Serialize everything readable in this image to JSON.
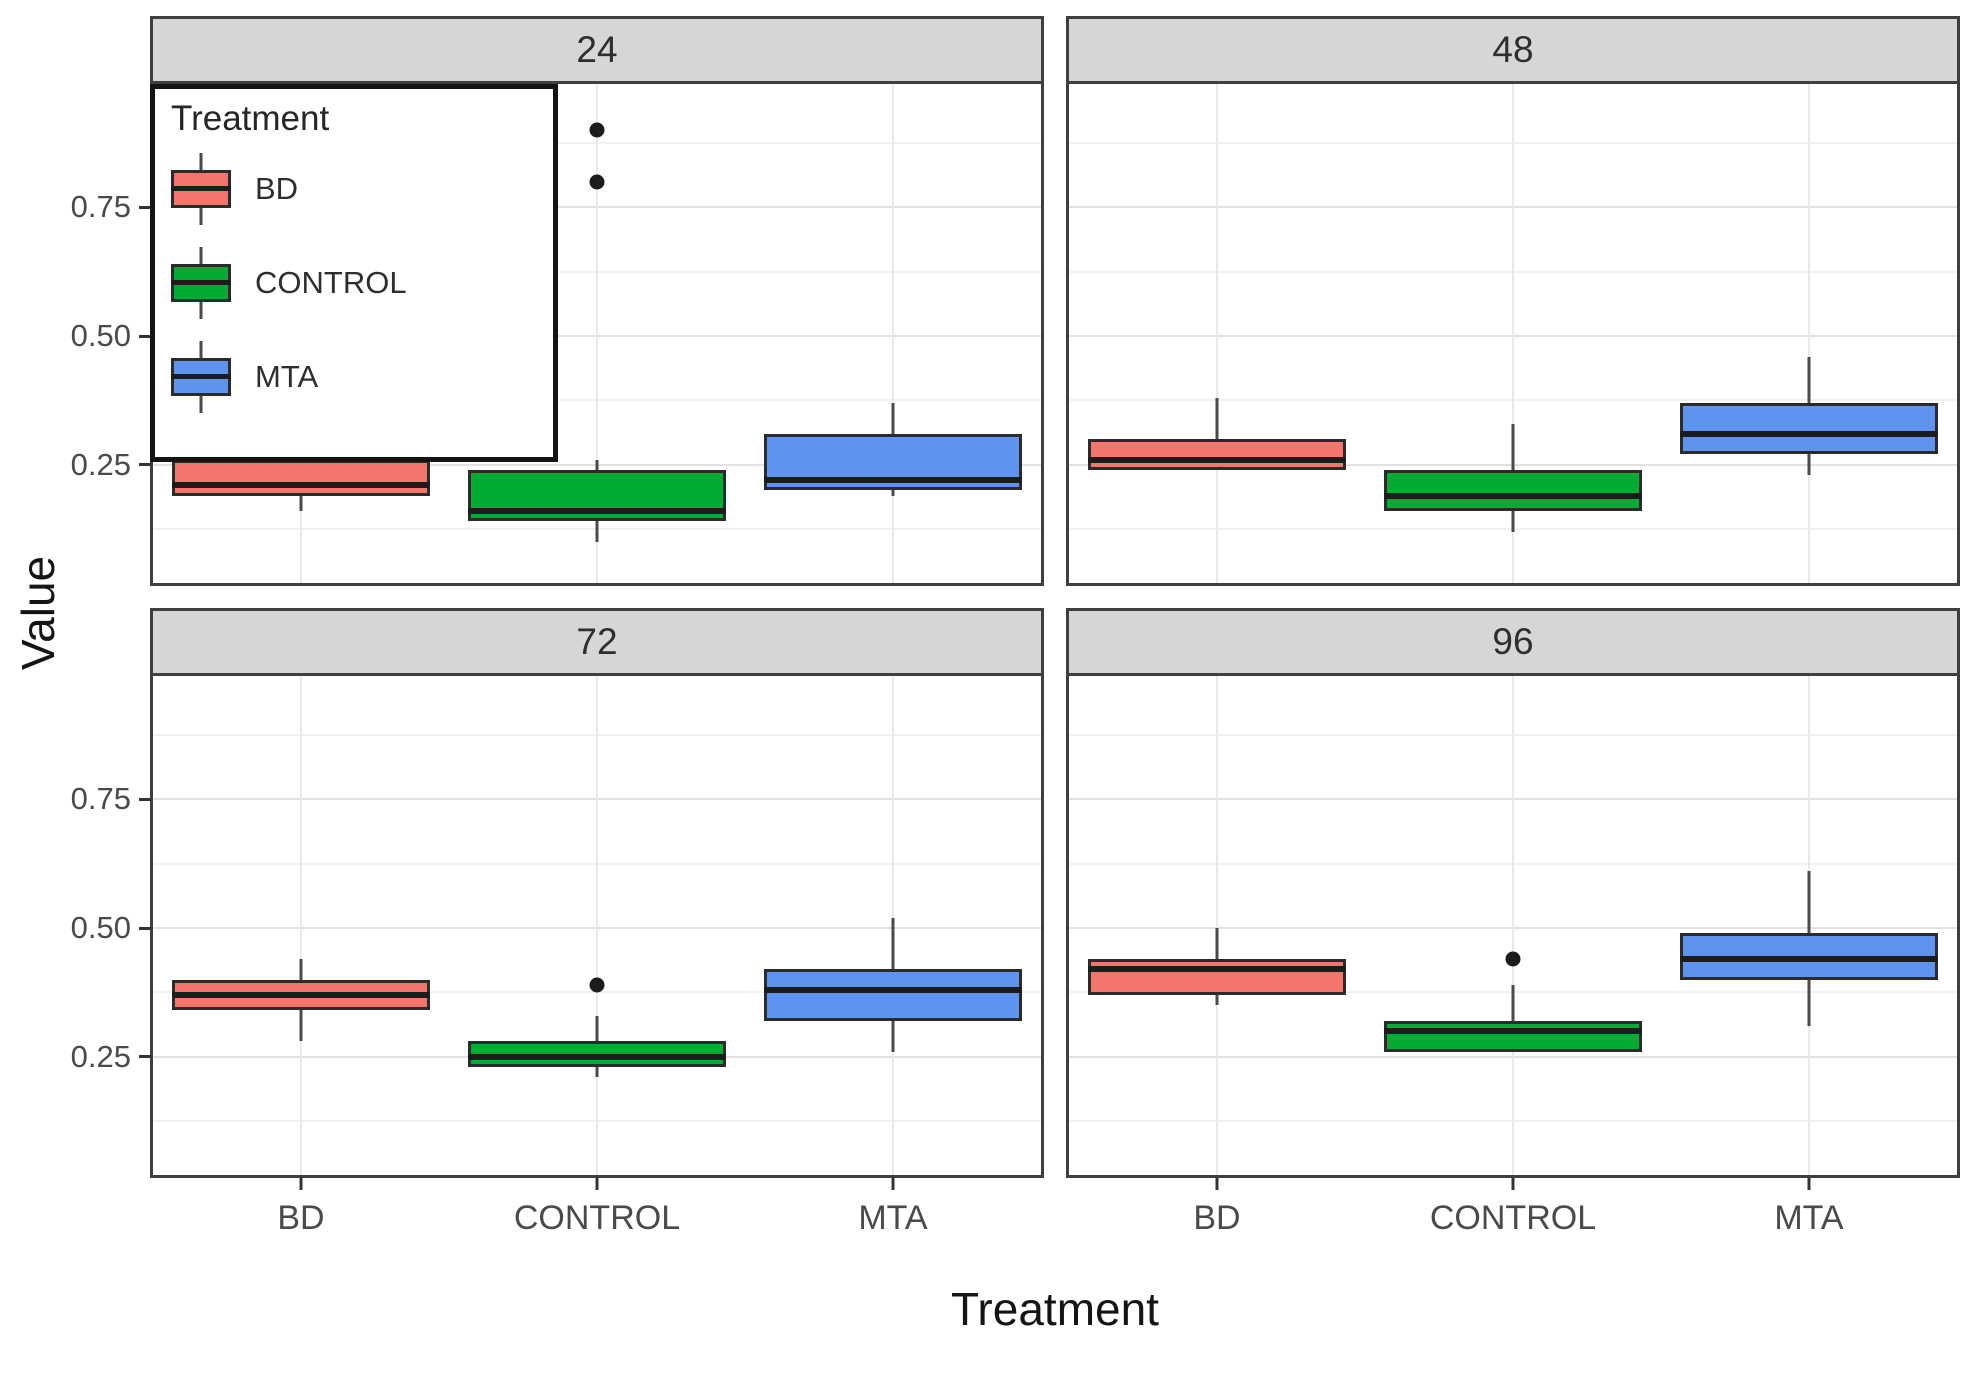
{
  "chart_data": {
    "type": "boxplot",
    "title": "",
    "ylabel": "Value",
    "xlabel": "Treatment",
    "categories": [
      "BD",
      "CONTROL",
      "MTA"
    ],
    "facet_variable_values": [
      "24",
      "48",
      "72",
      "96"
    ],
    "ylim": [
      0.02,
      0.99
    ],
    "y_ticks": [
      {
        "value": 0.75,
        "label": "0.75"
      },
      {
        "value": 0.5,
        "label": "0.50"
      },
      {
        "value": 0.25,
        "label": "0.25"
      }
    ],
    "y_minor_gridlines": [
      0.875,
      0.625,
      0.375,
      0.125
    ],
    "grid": "on",
    "legend": {
      "title": "Treatment",
      "position": "inside-top-left-panel",
      "entries": [
        {
          "label": "BD",
          "color": "#F4756C"
        },
        {
          "label": "CONTROL",
          "color": "#00AC33"
        },
        {
          "label": "MTA",
          "color": "#5E94F0"
        }
      ]
    },
    "facets": [
      {
        "label": "24",
        "boxes": [
          {
            "treatment": "BD",
            "whislo": 0.16,
            "q1": 0.19,
            "med": 0.21,
            "q3": 0.26,
            "whishi": 0.3,
            "outliers": []
          },
          {
            "treatment": "CONTROL",
            "whislo": 0.1,
            "q1": 0.14,
            "med": 0.16,
            "q3": 0.24,
            "whishi": 0.26,
            "outliers": [
              0.8,
              0.9
            ]
          },
          {
            "treatment": "MTA",
            "whislo": 0.19,
            "q1": 0.2,
            "med": 0.22,
            "q3": 0.31,
            "whishi": 0.37,
            "outliers": []
          }
        ]
      },
      {
        "label": "48",
        "boxes": [
          {
            "treatment": "BD",
            "whislo": 0.24,
            "q1": 0.24,
            "med": 0.26,
            "q3": 0.3,
            "whishi": 0.38,
            "outliers": []
          },
          {
            "treatment": "CONTROL",
            "whislo": 0.12,
            "q1": 0.16,
            "med": 0.19,
            "q3": 0.24,
            "whishi": 0.33,
            "outliers": []
          },
          {
            "treatment": "MTA",
            "whislo": 0.23,
            "q1": 0.27,
            "med": 0.31,
            "q3": 0.37,
            "whishi": 0.46,
            "outliers": []
          }
        ]
      },
      {
        "label": "72",
        "boxes": [
          {
            "treatment": "BD",
            "whislo": 0.28,
            "q1": 0.34,
            "med": 0.37,
            "q3": 0.4,
            "whishi": 0.44,
            "outliers": []
          },
          {
            "treatment": "CONTROL",
            "whislo": 0.21,
            "q1": 0.23,
            "med": 0.25,
            "q3": 0.28,
            "whishi": 0.33,
            "outliers": [
              0.39
            ]
          },
          {
            "treatment": "MTA",
            "whislo": 0.26,
            "q1": 0.32,
            "med": 0.38,
            "q3": 0.42,
            "whishi": 0.52,
            "outliers": []
          }
        ]
      },
      {
        "label": "96",
        "boxes": [
          {
            "treatment": "BD",
            "whislo": 0.35,
            "q1": 0.37,
            "med": 0.42,
            "q3": 0.44,
            "whishi": 0.5,
            "outliers": []
          },
          {
            "treatment": "CONTROL",
            "whislo": 0.26,
            "q1": 0.26,
            "med": 0.3,
            "q3": 0.32,
            "whishi": 0.39,
            "outliers": [
              0.44
            ]
          },
          {
            "treatment": "MTA",
            "whislo": 0.31,
            "q1": 0.4,
            "med": 0.44,
            "q3": 0.49,
            "whishi": 0.61,
            "outliers": []
          }
        ]
      }
    ],
    "style": {
      "strip_background": "#D6D6D6",
      "panel_border": "#3F3F3F",
      "major_gridline": "#E2E2E2",
      "minor_gridline": "#F1F1F1",
      "box_border": "#2B2B2B",
      "median_color": "#1C1C1C",
      "whisker_color": "#4A4A4A",
      "text_color": "#4A4A4A"
    }
  }
}
